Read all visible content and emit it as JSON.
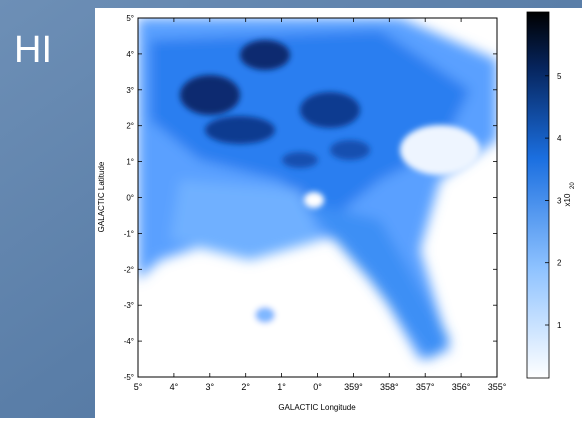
{
  "slide": {
    "title": "HI"
  },
  "figure": {
    "x_axis": {
      "label": "GALACTIC Longitude",
      "ticks": [
        "5°",
        "4°",
        "3°",
        "2°",
        "1°",
        "0°",
        "359°",
        "358°",
        "357°",
        "356°",
        "355°"
      ]
    },
    "y_axis": {
      "label": "GALACTIC Latitude",
      "ticks": [
        "5°",
        "4°",
        "3°",
        "2°",
        "1°",
        "0°",
        "-1°",
        "-2°",
        "-3°",
        "-4°",
        "-5°"
      ]
    },
    "colorbar": {
      "ticks": [
        "1",
        "2",
        "3",
        "4",
        "5"
      ],
      "unit": "x10",
      "unit_exponent": "20"
    }
  }
}
